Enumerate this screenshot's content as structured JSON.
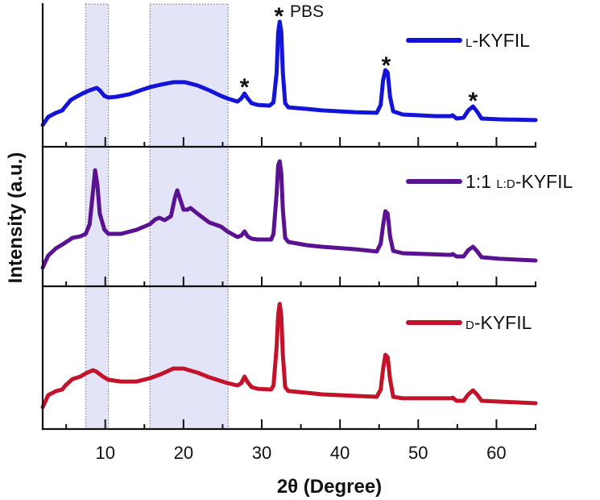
{
  "chart_data": {
    "type": "line",
    "arrangement": "three vertically stacked panels sharing the x-axis",
    "title": "",
    "xlabel": "2θ (Degree)",
    "ylabel": "Intensity (a.u.)",
    "xlim": [
      2,
      65
    ],
    "ylim": [
      0,
      100
    ],
    "yticks_shown": false,
    "grid": false,
    "xticks": [
      10,
      20,
      30,
      40,
      50,
      60
    ],
    "xtick_labels": [
      "10",
      "20",
      "30",
      "40",
      "50",
      "60"
    ],
    "minor_xticks": [
      5,
      15,
      25,
      35,
      45,
      55,
      65
    ],
    "legend_position": "top-right of each panel",
    "shaded_regions": [
      {
        "x0": 7.5,
        "x1": 10.4,
        "color": "#e3e4f7"
      },
      {
        "x0": 15.7,
        "x1": 25.7,
        "color": "#e3e4f7"
      }
    ],
    "series": [
      {
        "name": "L-KYFIL",
        "label": {
          "prefix": "",
          "smallcaps": "L",
          "suffix": "-KYFIL"
        },
        "color": "#1414d8",
        "panel": 0,
        "points": [
          [
            2.0,
            15.3
          ],
          [
            2.7,
            21.0
          ],
          [
            3.7,
            23.9
          ],
          [
            4.5,
            25.6
          ],
          [
            4.9,
            28.4
          ],
          [
            5.6,
            33.0
          ],
          [
            6.3,
            35.2
          ],
          [
            7.3,
            38.1
          ],
          [
            8.0,
            39.8
          ],
          [
            8.9,
            41.5
          ],
          [
            9.3,
            39.8
          ],
          [
            9.9,
            35.8
          ],
          [
            10.4,
            34.7
          ],
          [
            11.4,
            35.2
          ],
          [
            13.0,
            36.9
          ],
          [
            14.5,
            39.8
          ],
          [
            15.7,
            42.0
          ],
          [
            17.1,
            43.8
          ],
          [
            18.7,
            45.5
          ],
          [
            20.2,
            45.5
          ],
          [
            21.8,
            43.2
          ],
          [
            23.3,
            39.8
          ],
          [
            24.8,
            35.8
          ],
          [
            25.6,
            34.1
          ],
          [
            26.9,
            31.8
          ],
          [
            27.4,
            34.1
          ],
          [
            27.8,
            37.5
          ],
          [
            28.2,
            34.1
          ],
          [
            28.7,
            30.7
          ],
          [
            29.5,
            29.5
          ],
          [
            31.0,
            29.0
          ],
          [
            31.5,
            31.3
          ],
          [
            31.9,
            52.3
          ],
          [
            32.1,
            80.7
          ],
          [
            32.3,
            88.1
          ],
          [
            32.5,
            80.7
          ],
          [
            32.7,
            52.3
          ],
          [
            33.0,
            30.7
          ],
          [
            33.4,
            27.8
          ],
          [
            35.7,
            26.7
          ],
          [
            37.7,
            25.6
          ],
          [
            41.9,
            24.4
          ],
          [
            44.7,
            23.9
          ],
          [
            45.2,
            29.5
          ],
          [
            45.5,
            46.6
          ],
          [
            45.8,
            54.0
          ],
          [
            46.1,
            52.3
          ],
          [
            46.4,
            35.2
          ],
          [
            46.8,
            25.0
          ],
          [
            48.0,
            22.7
          ],
          [
            52.2,
            21.6
          ],
          [
            54.2,
            21.6
          ],
          [
            54.4,
            22.2
          ],
          [
            54.9,
            19.9
          ],
          [
            55.8,
            20.5
          ],
          [
            56.4,
            25.6
          ],
          [
            57.0,
            28.4
          ],
          [
            57.5,
            25.0
          ],
          [
            58.1,
            19.9
          ],
          [
            60.4,
            19.3
          ],
          [
            65.0,
            18.8
          ]
        ]
      },
      {
        "name": "1:1 L:D-KYFIL",
        "label": {
          "prefix": "1:1 ",
          "smallcaps": "L:D",
          "suffix": "-KYFIL"
        },
        "color": "#5a1290",
        "panel": 1,
        "points": [
          [
            2.0,
            13.3
          ],
          [
            2.7,
            22.0
          ],
          [
            3.7,
            27.2
          ],
          [
            4.7,
            30.6
          ],
          [
            5.8,
            34.7
          ],
          [
            6.8,
            35.8
          ],
          [
            7.5,
            37.6
          ],
          [
            8.0,
            44.5
          ],
          [
            8.4,
            66.5
          ],
          [
            8.7,
            83.2
          ],
          [
            9.0,
            72.3
          ],
          [
            9.3,
            52.0
          ],
          [
            9.9,
            40.5
          ],
          [
            10.4,
            37.6
          ],
          [
            12.0,
            37.6
          ],
          [
            14.0,
            40.5
          ],
          [
            15.7,
            44.5
          ],
          [
            16.4,
            48.0
          ],
          [
            16.9,
            49.1
          ],
          [
            17.6,
            47.4
          ],
          [
            18.4,
            50.3
          ],
          [
            18.9,
            63.6
          ],
          [
            19.2,
            68.8
          ],
          [
            19.6,
            61.8
          ],
          [
            20.0,
            54.9
          ],
          [
            20.5,
            54.9
          ],
          [
            20.9,
            56.1
          ],
          [
            21.8,
            52.0
          ],
          [
            23.3,
            45.7
          ],
          [
            24.8,
            42.8
          ],
          [
            25.6,
            39.3
          ],
          [
            26.9,
            35.3
          ],
          [
            27.4,
            36.4
          ],
          [
            27.8,
            39.3
          ],
          [
            28.2,
            35.8
          ],
          [
            28.7,
            34.1
          ],
          [
            29.5,
            33.5
          ],
          [
            31.2,
            33.5
          ],
          [
            31.5,
            37.6
          ],
          [
            31.9,
            66.5
          ],
          [
            32.1,
            86.7
          ],
          [
            32.3,
            89.6
          ],
          [
            32.5,
            80.9
          ],
          [
            32.7,
            54.9
          ],
          [
            33.0,
            34.7
          ],
          [
            33.4,
            31.8
          ],
          [
            35.7,
            29.5
          ],
          [
            37.7,
            28.3
          ],
          [
            41.9,
            26.6
          ],
          [
            44.7,
            24.9
          ],
          [
            45.2,
            30.6
          ],
          [
            45.5,
            43.4
          ],
          [
            45.8,
            53.8
          ],
          [
            46.1,
            52.0
          ],
          [
            46.4,
            35.8
          ],
          [
            46.8,
            25.4
          ],
          [
            48.0,
            23.7
          ],
          [
            54.2,
            22.5
          ],
          [
            54.4,
            23.1
          ],
          [
            54.9,
            21.4
          ],
          [
            55.8,
            21.4
          ],
          [
            56.4,
            26.0
          ],
          [
            57.0,
            28.3
          ],
          [
            57.5,
            25.4
          ],
          [
            58.1,
            20.8
          ],
          [
            60.4,
            19.7
          ],
          [
            65.0,
            18.5
          ]
        ]
      },
      {
        "name": "D-KYFIL",
        "label": {
          "prefix": "",
          "smallcaps": "D",
          "suffix": "-KYFIL"
        },
        "color": "#c2132b",
        "panel": 2,
        "points": [
          [
            2.0,
            15.3
          ],
          [
            2.7,
            23.7
          ],
          [
            3.7,
            26.6
          ],
          [
            4.5,
            27.7
          ],
          [
            4.9,
            30.5
          ],
          [
            5.8,
            35.0
          ],
          [
            6.8,
            36.7
          ],
          [
            7.5,
            39.0
          ],
          [
            8.4,
            41.2
          ],
          [
            8.9,
            40.1
          ],
          [
            9.7,
            36.7
          ],
          [
            10.4,
            34.5
          ],
          [
            12.0,
            33.3
          ],
          [
            14.0,
            33.3
          ],
          [
            15.7,
            35.6
          ],
          [
            17.1,
            38.4
          ],
          [
            18.7,
            42.4
          ],
          [
            20.0,
            42.4
          ],
          [
            21.8,
            39.5
          ],
          [
            23.3,
            36.2
          ],
          [
            25.6,
            32.2
          ],
          [
            26.9,
            30.5
          ],
          [
            27.4,
            32.2
          ],
          [
            27.8,
            36.7
          ],
          [
            28.2,
            32.8
          ],
          [
            28.7,
            29.4
          ],
          [
            29.5,
            28.2
          ],
          [
            31.2,
            27.7
          ],
          [
            31.5,
            30.5
          ],
          [
            31.9,
            57.6
          ],
          [
            32.1,
            80.2
          ],
          [
            32.3,
            87.6
          ],
          [
            32.5,
            79.1
          ],
          [
            32.7,
            52.0
          ],
          [
            33.0,
            29.4
          ],
          [
            33.4,
            26.6
          ],
          [
            35.7,
            25.4
          ],
          [
            37.7,
            24.3
          ],
          [
            41.9,
            23.2
          ],
          [
            44.7,
            22.6
          ],
          [
            45.2,
            27.7
          ],
          [
            45.5,
            41.8
          ],
          [
            45.8,
            52.0
          ],
          [
            46.1,
            50.3
          ],
          [
            46.4,
            35.0
          ],
          [
            46.8,
            22.6
          ],
          [
            48.0,
            21.5
          ],
          [
            54.2,
            21.5
          ],
          [
            54.4,
            22.0
          ],
          [
            54.9,
            19.8
          ],
          [
            55.8,
            19.8
          ],
          [
            56.4,
            24.3
          ],
          [
            57.0,
            27.1
          ],
          [
            57.5,
            24.3
          ],
          [
            58.1,
            19.8
          ],
          [
            60.4,
            19.2
          ],
          [
            65.0,
            18.1
          ]
        ]
      }
    ],
    "annotations": [
      {
        "text": "*",
        "panel": 0,
        "x": 27.8,
        "y": 46.0,
        "kind": "star"
      },
      {
        "text": "*",
        "panel": 0,
        "x": 32.2,
        "y": 96.0,
        "kind": "star"
      },
      {
        "text": "PBS",
        "panel": 0,
        "x": 33.6,
        "y": 96.0,
        "kind": "text"
      },
      {
        "text": "*",
        "panel": 0,
        "x": 45.9,
        "y": 61.5,
        "kind": "star"
      },
      {
        "text": "*",
        "panel": 0,
        "x": 57.0,
        "y": 36.5,
        "kind": "star"
      }
    ]
  }
}
